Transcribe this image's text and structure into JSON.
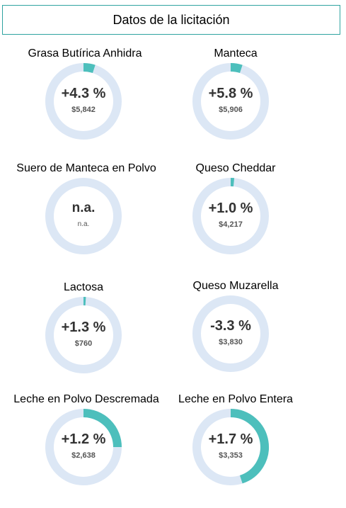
{
  "header": {
    "title": "Datos de la licitación"
  },
  "colors": {
    "track": "#dce7f5",
    "accent": "#4dbfbc",
    "border": "#2fa3a0"
  },
  "products": [
    {
      "name": "Grasa Butírica Anhidra",
      "change": "+4.3 %",
      "price": "$5,842",
      "fill": 0.05
    },
    {
      "name": "Manteca",
      "change": "+5.8 %",
      "price": "$5,906",
      "fill": 0.05
    },
    {
      "name": "Suero de Manteca en Polvo",
      "change": "n.a.",
      "price": "n.a.",
      "fill": 0
    },
    {
      "name": "Queso Cheddar",
      "change": "+1.0 %",
      "price": "$4,217",
      "fill": 0.015
    },
    {
      "name": "Lactosa",
      "change": "+1.3 %",
      "price": "$760",
      "fill": 0.01
    },
    {
      "name": "Queso Muzarella",
      "change": "-3.3 %",
      "price": "$3,830",
      "fill": 0
    },
    {
      "name": "Leche en Polvo Descremada",
      "change": "+1.2 %",
      "price": "$2,638",
      "fill": 0.25
    },
    {
      "name": "Leche en Polvo Entera",
      "change": "+1.7 %",
      "price": "$3,353",
      "fill": 0.45
    }
  ]
}
